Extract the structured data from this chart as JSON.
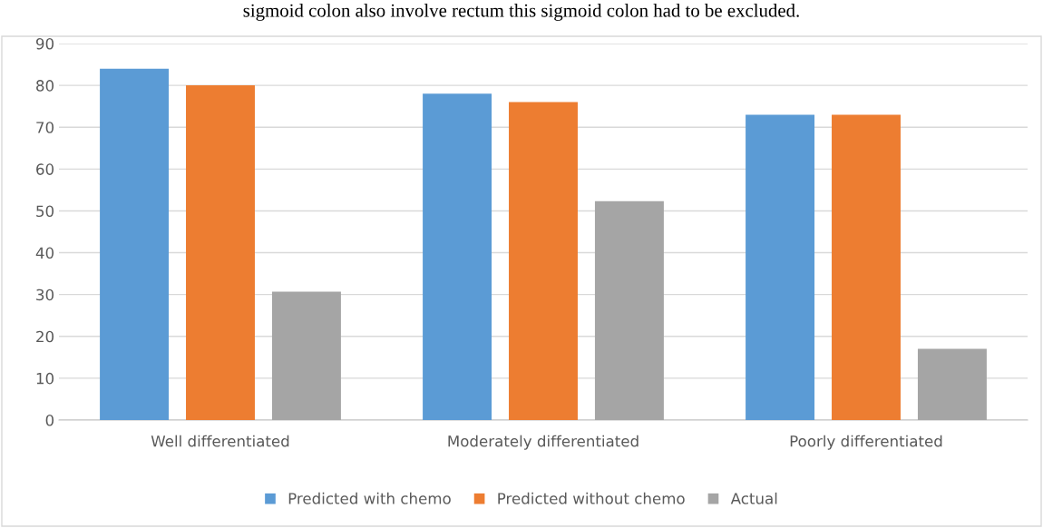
{
  "chart_data": {
    "type": "bar",
    "annotations": [
      "sigmoid colon also involve rectum this sigmoid colon had to be excluded."
    ],
    "categories": [
      "Well differentiated",
      "Moderately differentiated",
      "Poorly differentiated"
    ],
    "series": [
      {
        "name": "Predicted with chemo",
        "color": "#5b9bd5",
        "values": [
          84,
          78,
          73
        ]
      },
      {
        "name": "Predicted without chemo",
        "color": "#ed7d31",
        "values": [
          80,
          76,
          73
        ]
      },
      {
        "name": "Actual",
        "color": "#a5a5a5",
        "values": [
          30.7,
          52.3,
          17
        ]
      }
    ],
    "ylim": [
      0,
      90
    ],
    "yticks": [
      0,
      10,
      20,
      30,
      40,
      50,
      60,
      70,
      80,
      90
    ],
    "grid": "y",
    "legend": "bottom"
  }
}
